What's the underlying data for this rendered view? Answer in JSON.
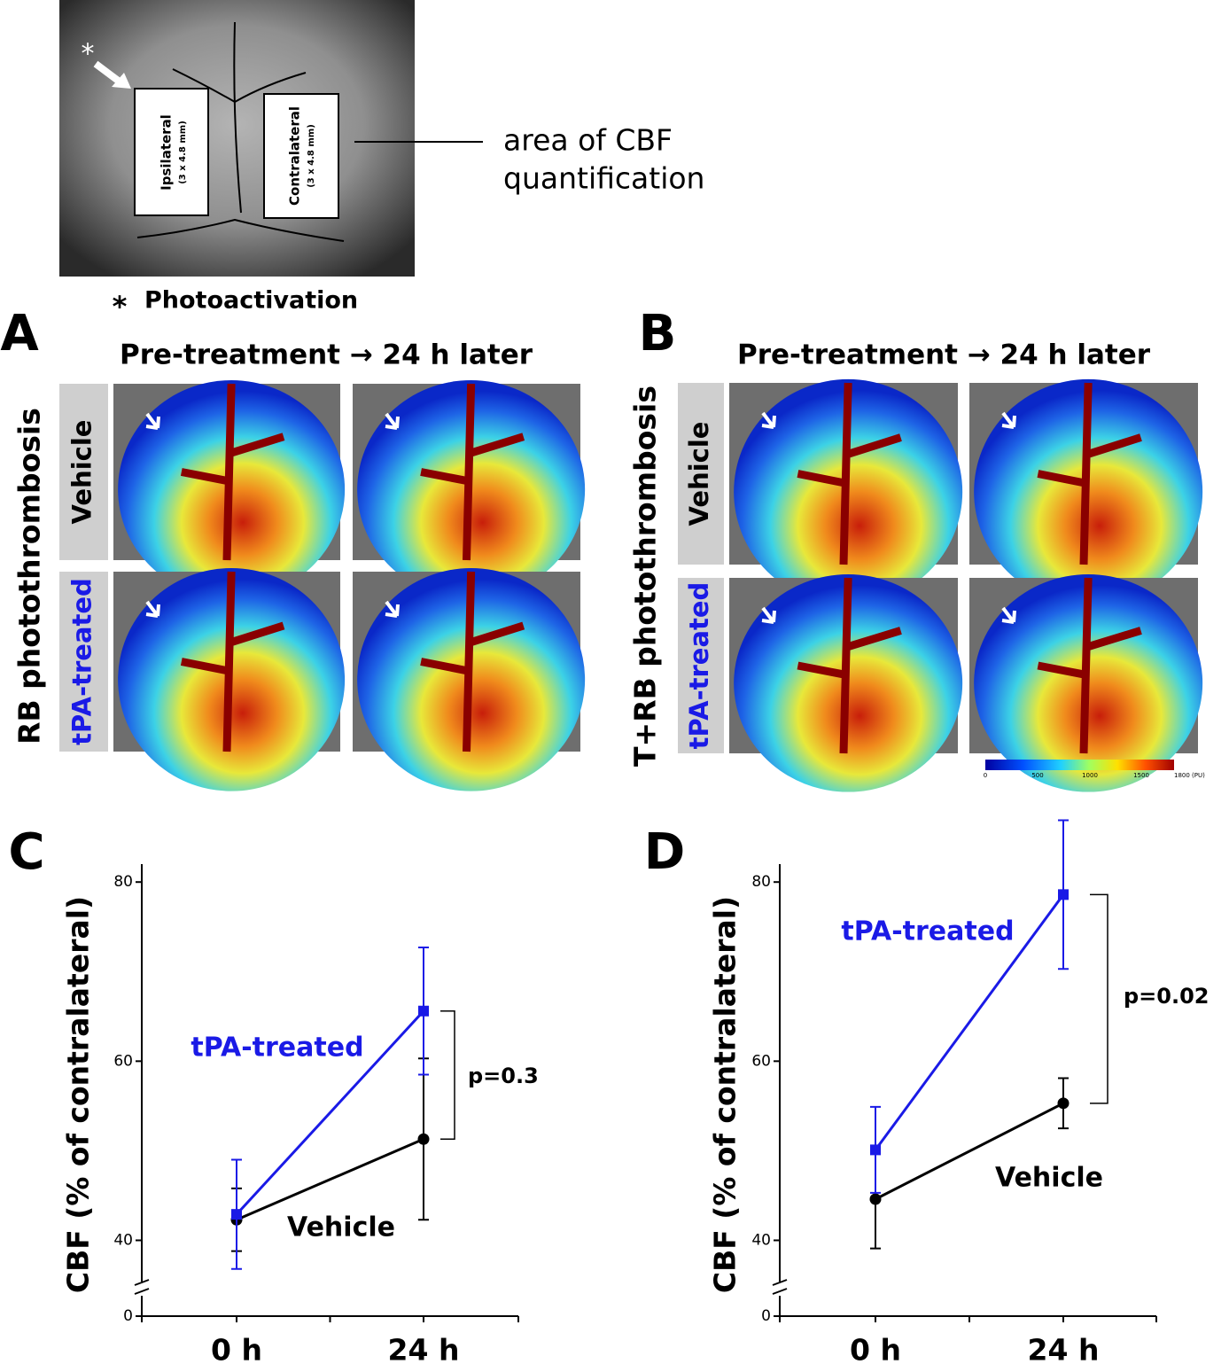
{
  "figure": {
    "photo": {
      "marker": "*",
      "ipsilateral": "Ipsilateral",
      "ipsilateral_size": "(3 x 4.8 mm)",
      "contralateral": "Contralateral",
      "contralateral_size": "(3 x 4.8 mm)",
      "callout": [
        "area of CBF",
        "quantification"
      ],
      "legend_marker": "*",
      "legend": "Photoactivation"
    },
    "panels": [
      {
        "letter": "A",
        "header": "Pre-treatment → 24 h later",
        "side_label": "RB photothrombosis",
        "rows": [
          "Vehicle",
          "tPA-treated"
        ]
      },
      {
        "letter": "B",
        "header": "Pre-treatment → 24 h later",
        "side_label": "T+RB photothrombosis",
        "rows": [
          "Vehicle",
          "tPA-treated"
        ]
      }
    ],
    "colorbar": {
      "labels": [
        "0",
        "500",
        "1000",
        "1500",
        "1800 (PU)"
      ]
    }
  },
  "chart_data": [
    {
      "type": "line",
      "panel": "C",
      "ylabel": "CBF (% of contralateral)",
      "categories": [
        "0 h",
        "24 h"
      ],
      "series": [
        {
          "name": "tPA-treated",
          "color": "#1a1ae6",
          "marker": "square",
          "values": [
            42.9,
            65.6
          ],
          "errors": [
            6.1,
            7.1
          ]
        },
        {
          "name": "Vehicle",
          "color": "#000000",
          "marker": "circle",
          "values": [
            42.3,
            51.3
          ],
          "errors": [
            3.5,
            9.0
          ]
        }
      ],
      "ylim": [
        0,
        82
      ],
      "ybreak": [
        3,
        35
      ],
      "yticks": [
        0,
        40,
        60,
        80
      ],
      "annotation": "p=0.3"
    },
    {
      "type": "line",
      "panel": "D",
      "ylabel": "CBF (% of contralateral)",
      "categories": [
        "0 h",
        "24 h"
      ],
      "series": [
        {
          "name": "tPA-treated",
          "color": "#1a1ae6",
          "marker": "square",
          "values": [
            50.1,
            78.6
          ],
          "errors": [
            4.8,
            8.3
          ]
        },
        {
          "name": "Vehicle",
          "color": "#000000",
          "marker": "circle",
          "values": [
            44.6,
            55.3
          ],
          "errors": [
            5.5,
            2.8
          ]
        }
      ],
      "ylim": [
        0,
        82
      ],
      "ybreak": [
        3,
        35
      ],
      "yticks": [
        0,
        40,
        60,
        80
      ],
      "annotation": "p=0.02"
    }
  ]
}
